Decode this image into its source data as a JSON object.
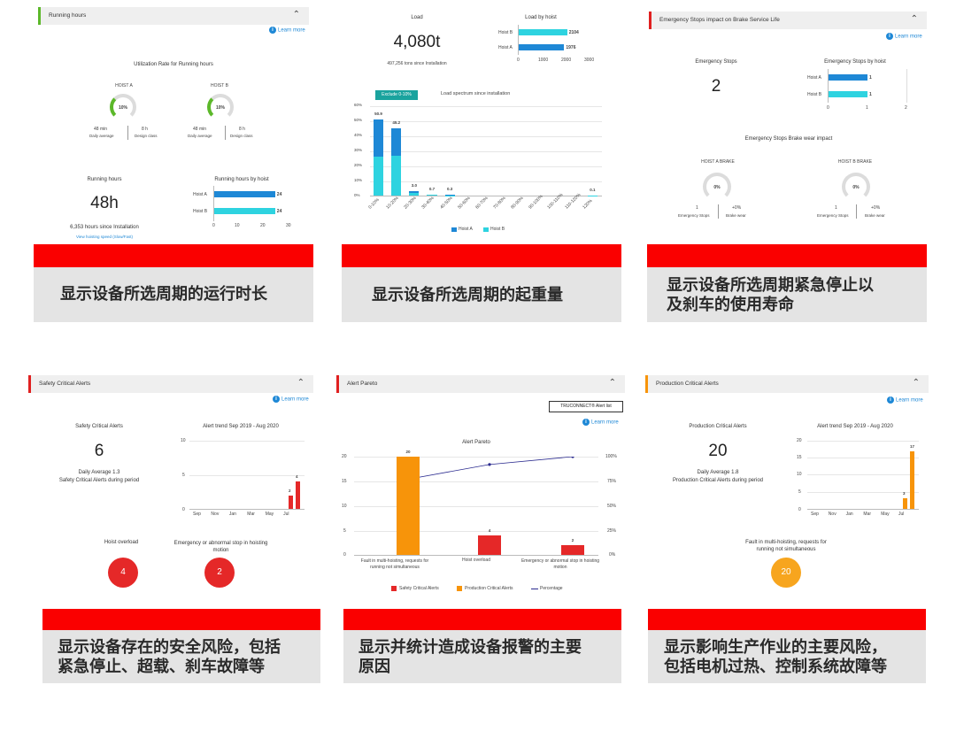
{
  "p1": {
    "section": "Running hours",
    "learn": "Learn more",
    "util_title": "Utilization Rate for Running hours",
    "hoist_a": "HOIST A",
    "hoist_b": "HOIST B",
    "pct_a": "10%",
    "pct_b": "10%",
    "daily_a": "48 min",
    "design_a": "8 h",
    "daily_b": "48 min",
    "design_b": "8 h",
    "daily_label": "Daily average",
    "design_label": "Design class",
    "rh_label": "Running hours",
    "rh_value": "48h",
    "rh_sub": "6,353 hours since Installation",
    "rh_link": "View hoisting speed (Slow/Fast)",
    "rbh_title": "Running hours by hoist",
    "rbh_a": "Hoist A",
    "rbh_b": "Hoist B",
    "rbh_va": "24",
    "rbh_vb": "24",
    "rbh_ticks": [
      "0",
      "10",
      "20",
      "30"
    ],
    "caption": "显示设备所选周期的运行时长"
  },
  "p2": {
    "load_label": "Load",
    "load_value": "4,080t",
    "load_sub": "497,256 tons since Installation",
    "lbh_title": "Load by hoist",
    "lbh_b": "Hoist B",
    "lbh_a": "Hoist A",
    "lbh_vb": "2104",
    "lbh_va": "1976",
    "lbh_ticks": [
      "0",
      "1000",
      "2000",
      "3000"
    ],
    "tab": "Exclude 0-10%",
    "spec_title": "Load spectrum since installation",
    "yticks": [
      "60%",
      "50%",
      "40%",
      "30%",
      "20%",
      "10%",
      "0%"
    ],
    "xlabels": [
      "0-10%",
      "10-20%",
      "20-30%",
      "30-40%",
      "40-50%",
      "50-60%",
      "60-70%",
      "70-80%",
      "80-90%",
      "90-100%",
      "100-110%",
      "110-120%",
      "120%"
    ],
    "bar_labels": [
      "50.9",
      "45.2",
      "3.0",
      "0.7",
      "0.3",
      "",
      "",
      "",
      "",
      "",
      "",
      "",
      "0.1"
    ],
    "legend_a": "Hoist A",
    "legend_b": "Hoist B",
    "caption": "显示设备所选周期的起重量",
    "colors": {
      "a": "#1e88d6",
      "b": "#2ed3e0"
    }
  },
  "p3": {
    "section": "Emergency Stops impact on Brake Service Life",
    "learn": "Learn more",
    "es_label": "Emergency Stops",
    "es_value": "2",
    "esh_title": "Emergency Stops by hoist",
    "esh_a": "Hoist A",
    "esh_b": "Hoist B",
    "esh_va": "1",
    "esh_vb": "1",
    "esh_ticks": [
      "0",
      "1",
      "2"
    ],
    "wear_title": "Emergency Stops Brake wear impact",
    "brake_a": "HOIST A BRAKE",
    "brake_b": "HOIST B BRAKE",
    "pct_a": "0%",
    "pct_b": "0%",
    "es_a": "1",
    "wear_a": "+0%",
    "es_b": "1",
    "wear_b": "+0%",
    "es_sub": "Emergency Stops",
    "wear_sub": "Brake wear",
    "caption_l1": "显示设备所选周期紧急停止以",
    "caption_l2": "及刹车的使用寿命"
  },
  "p4": {
    "section": "Safety Critical Alerts",
    "learn": "Learn more",
    "label": "Safety Critical Alerts",
    "value": "6",
    "avg": "Daily Average 1.3",
    "avg_sub": "Safety Critical Alerts during period",
    "trend_title": "Alert trend Sep 2019 - Aug 2020",
    "yticks": [
      "10",
      "5",
      "0"
    ],
    "months": [
      "Sep",
      "Nov",
      "Jan",
      "Mar",
      "May",
      "Jul"
    ],
    "bar_labels": [
      "2",
      "4"
    ],
    "c1_label": "Hoist overload",
    "c1_value": "4",
    "c2_label": "Emergency or abnormal stop in hoisting motion",
    "c2_value": "2",
    "caption_l1": "显示设备存在的安全风险，包括",
    "caption_l2": "紧急停止、超载、刹车故障等"
  },
  "p5": {
    "section": "Alert Pareto",
    "btn": "TRUCONNECT® Alert list",
    "learn": "Learn more",
    "title": "Alert Pareto",
    "yticks": [
      "20",
      "15",
      "10",
      "5",
      "0"
    ],
    "rticks": [
      "100%",
      "75%",
      "50%",
      "25%",
      "0%"
    ],
    "cats": [
      "Fault in multi-hoisting, requests for running not simultaneous",
      "Hoist overload",
      "Emergency or abnormal stop in hoisting motion"
    ],
    "values": [
      "20",
      "4",
      "2"
    ],
    "legend": [
      "Safety Critical Alerts",
      "Production Critical Alerts",
      "Percentage"
    ],
    "caption_l1": "显示并统计造成设备报警的主要",
    "caption_l2": "原因"
  },
  "p6": {
    "section": "Production Critical Alerts",
    "learn": "Learn more",
    "label": "Production Critical Alerts",
    "value": "20",
    "avg": "Daily Average 1.8",
    "avg_sub": "Production Critical Alerts during period",
    "trend_title": "Alert trend Sep 2019 - Aug 2020",
    "yticks": [
      "20",
      "15",
      "10",
      "5",
      "0"
    ],
    "months": [
      "Sep",
      "Nov",
      "Jan",
      "Mar",
      "May",
      "Jul"
    ],
    "bar_labels": [
      "3",
      "17"
    ],
    "c1_label": "Fault in multi-hoisting, requests for running not simultaneous",
    "c1_value": "20",
    "caption_l1": "显示影响生产作业的主要风险，",
    "caption_l2": "包括电机过热、控制系统故障等"
  },
  "chart_data": [
    {
      "type": "bar",
      "title": "Running hours by hoist",
      "categories": [
        "Hoist A",
        "Hoist B"
      ],
      "values": [
        24,
        24
      ],
      "xlim": [
        0,
        30
      ]
    },
    {
      "type": "bar",
      "title": "Load by hoist",
      "categories": [
        "Hoist B",
        "Hoist A"
      ],
      "values": [
        2104,
        1976
      ],
      "xlim": [
        0,
        3000
      ]
    },
    {
      "type": "bar",
      "title": "Load spectrum since installation",
      "categories": [
        "0-10%",
        "10-20%",
        "20-30%",
        "30-40%",
        "40-50%",
        "50-60%",
        "60-70%",
        "70-80%",
        "80-90%",
        "90-100%",
        "100-110%",
        "110-120%",
        "120%"
      ],
      "series": [
        {
          "name": "Hoist A",
          "values": [
            26,
            27,
            1.5,
            0.4,
            0.2,
            0,
            0,
            0,
            0,
            0,
            0,
            0,
            0.05
          ]
        },
        {
          "name": "Hoist B",
          "values": [
            24.9,
            18.2,
            1.5,
            0.3,
            0.1,
            0,
            0,
            0,
            0,
            0,
            0,
            0,
            0.05
          ]
        }
      ],
      "ylim": [
        0,
        60
      ]
    },
    {
      "type": "bar",
      "title": "Emergency Stops by hoist",
      "categories": [
        "Hoist A",
        "Hoist B"
      ],
      "values": [
        1,
        1
      ],
      "xlim": [
        0,
        2
      ]
    },
    {
      "type": "bar",
      "title": "Alert trend Sep 2019 - Aug 2020",
      "categories": [
        "Jun",
        "Jul"
      ],
      "values": [
        2,
        4
      ],
      "ylim": [
        0,
        10
      ]
    },
    {
      "type": "bar",
      "title": "Alert Pareto",
      "categories": [
        "Fault in multi-hoisting, requests for running not simultaneous",
        "Hoist overload",
        "Emergency or abnormal stop in hoisting motion"
      ],
      "values": [
        20,
        4,
        2
      ],
      "percentage": [
        77,
        92,
        100
      ],
      "ylim": [
        0,
        20
      ]
    },
    {
      "type": "bar",
      "title": "Alert trend Sep 2019 - Aug 2020",
      "categories": [
        "Jun",
        "Jul"
      ],
      "values": [
        3,
        17
      ],
      "ylim": [
        0,
        20
      ]
    }
  ]
}
